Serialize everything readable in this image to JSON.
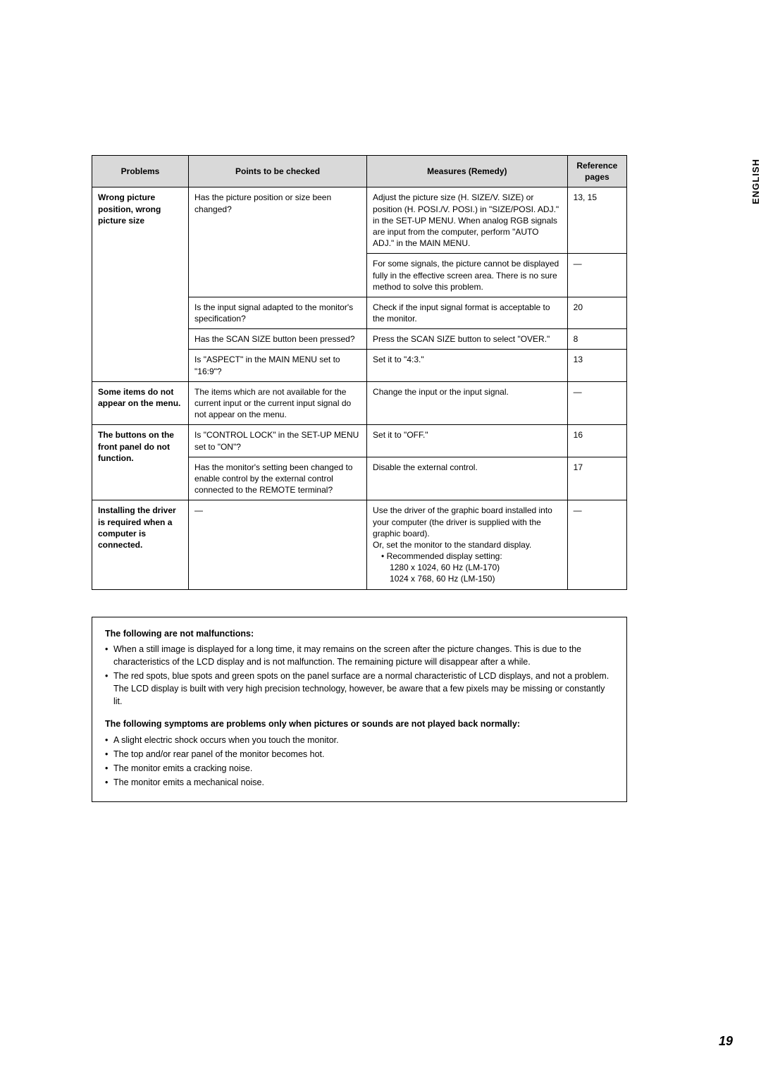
{
  "side_label": "ENGLISH",
  "table": {
    "headers": {
      "problems": "Problems",
      "points": "Points to be checked",
      "measures": "Measures (Remedy)",
      "reference": "Reference pages"
    },
    "rows": {
      "r1": {
        "problem": "Wrong picture position, wrong picture size",
        "points": "Has the picture position or size been changed?",
        "measures": "Adjust the picture size (H. SIZE/V. SIZE) or position (H. POSI./V. POSI.) in \"SIZE/POSI. ADJ.\" in the SET-UP MENU.\nWhen analog RGB signals are input from the computer, perform \"AUTO ADJ.\" in the MAIN MENU.",
        "ref": "13, 15"
      },
      "r2": {
        "measures": "For some signals, the picture cannot be displayed fully in the effective screen area. There is no sure method to solve this problem.",
        "ref": "—"
      },
      "r3": {
        "points": "Is the input signal adapted to the monitor's specification?",
        "measures": "Check if the input signal format is acceptable to the monitor.",
        "ref": "20"
      },
      "r4": {
        "points": "Has the SCAN SIZE button been pressed?",
        "measures": "Press the SCAN SIZE button to select \"OVER.\"",
        "ref": "8"
      },
      "r5": {
        "points": "Is \"ASPECT\" in the MAIN MENU set to \"16:9\"?",
        "measures": "Set it to \"4:3.\"",
        "ref": "13"
      },
      "r6": {
        "problem": "Some items do not appear on the menu.",
        "points": "The items which are not available for the current input or the current input signal do not appear on the menu.",
        "measures": "Change the input or the input signal.",
        "ref": "—"
      },
      "r7": {
        "problem": "The buttons on the front panel do not function.",
        "points": "Is \"CONTROL LOCK\" in the SET-UP MENU set to \"ON\"?",
        "measures": "Set it to \"OFF.\"",
        "ref": "16"
      },
      "r8": {
        "points": "Has the monitor's setting been changed to enable control by the external control connected to the REMOTE terminal?",
        "measures": "Disable the external control.",
        "ref": "17"
      },
      "r9": {
        "problem": "Installing the driver is required when a computer is connected.",
        "points": "—",
        "measures_line1": "Use the driver of the graphic board installed into your computer (the driver is supplied with the graphic board).",
        "measures_line2": "Or, set the monitor to the standard display.",
        "measures_line3": "• Recommended display setting:",
        "measures_line4": "1280 x 1024, 60 Hz (LM-170)",
        "measures_line5": "1024 x 768, 60 Hz (LM-150)",
        "ref": "—"
      }
    }
  },
  "notes": {
    "heading1": "The following are not malfunctions:",
    "list1": {
      "a": "When a still image is displayed for a long time, it may remains on the screen after the picture changes. This is due to the characteristics of the LCD display and is not malfunction. The remaining picture will disappear after a while.",
      "b": "The red spots, blue spots and green spots on the panel surface are a normal characteristic of LCD displays, and not a problem. The LCD display is built with very high precision technology, however, be aware that a few pixels may be missing or constantly lit."
    },
    "heading2": "The following symptoms are problems only when pictures or sounds are not played back normally:",
    "list2": {
      "a": "A slight electric shock occurs when you touch the monitor.",
      "b": "The top and/or rear panel of the monitor becomes hot.",
      "c": "The monitor emits a cracking noise.",
      "d": "The monitor emits a mechanical noise."
    }
  },
  "page_number": "19"
}
